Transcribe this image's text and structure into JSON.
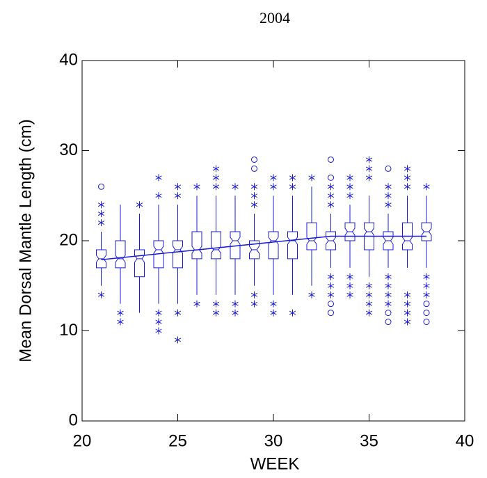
{
  "chart_data": {
    "type": "box",
    "title": "2004",
    "x_label": "WEEK",
    "y_label": "Mean Dorsal Mantle Length (cm)",
    "x": [
      21,
      22,
      23,
      24,
      25,
      26,
      27,
      28,
      29,
      30,
      31,
      32,
      33,
      34,
      35,
      36,
      37,
      38
    ],
    "whisker_low": [
      15,
      13,
      12,
      13,
      13,
      14,
      14,
      14,
      15,
      14,
      14,
      15,
      17,
      17,
      16,
      17,
      17,
      17
    ],
    "q1": [
      17,
      17,
      16,
      17,
      17,
      18,
      18,
      18,
      18,
      18,
      18,
      19,
      19,
      20,
      19,
      19,
      19,
      20
    ],
    "median": [
      18,
      18,
      18,
      19,
      19,
      19,
      19,
      20,
      19,
      20,
      20,
      20,
      20,
      21,
      21,
      20,
      20,
      21
    ],
    "q3": [
      19,
      20,
      19,
      20,
      20,
      21,
      21,
      21,
      20,
      21,
      21,
      22,
      21,
      22,
      22,
      21,
      22,
      22
    ],
    "whisker_high": [
      21,
      24,
      23,
      24,
      24,
      25,
      25,
      25,
      23,
      25,
      25,
      26,
      23,
      24,
      25,
      23,
      25,
      25
    ],
    "outliers": [
      [
        14,
        22,
        23,
        24
      ],
      [
        11,
        12
      ],
      [
        24
      ],
      [
        10,
        11,
        12,
        25,
        27
      ],
      [
        9,
        12,
        25,
        26
      ],
      [
        13,
        26
      ],
      [
        12,
        13,
        26,
        27,
        28
      ],
      [
        12,
        13,
        26
      ],
      [
        13,
        14,
        24,
        25,
        26
      ],
      [
        12,
        13,
        26,
        27
      ],
      [
        12,
        26,
        27
      ],
      [
        14,
        27
      ],
      [
        14,
        15,
        16,
        24,
        25,
        26
      ],
      [
        14,
        15,
        16,
        25,
        26,
        27
      ],
      [
        12,
        13,
        14,
        15,
        27,
        28,
        29
      ],
      [
        13,
        14,
        15,
        16,
        24,
        25,
        26
      ],
      [
        11,
        12,
        13,
        14,
        26,
        27,
        28
      ],
      [
        14,
        15,
        16,
        26
      ]
    ],
    "far_outliers": [
      [
        26
      ],
      [],
      [],
      [],
      [],
      [],
      [],
      [],
      [
        28,
        29
      ],
      [],
      [],
      [],
      [
        12,
        13,
        27,
        29
      ],
      [],
      [],
      [
        11,
        12,
        28
      ],
      [],
      [
        11,
        12,
        13
      ]
    ],
    "trend": {
      "x": [
        21,
        33,
        38
      ],
      "y": [
        17.9,
        20.5,
        20.5
      ]
    },
    "color": "#1a1ad6",
    "xlim": [
      20,
      40
    ],
    "xticks": [
      20,
      25,
      30,
      35,
      40
    ],
    "ylim": [
      0,
      40
    ],
    "yticks": [
      0,
      10,
      20,
      30,
      40
    ]
  }
}
